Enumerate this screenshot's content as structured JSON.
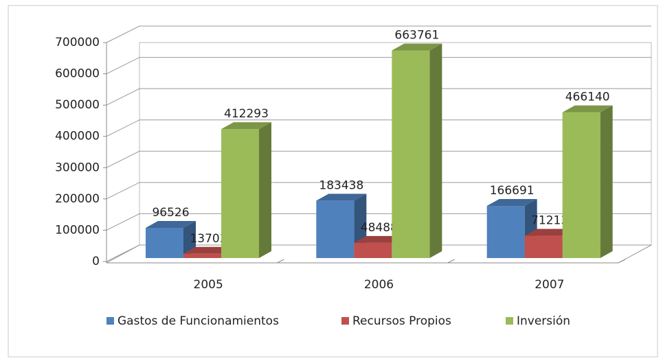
{
  "chart_data": {
    "type": "bar3d",
    "categories": [
      "2005",
      "2006",
      "2007"
    ],
    "series": [
      {
        "name": "Gastos de Funcionamientos",
        "color": "#4f81bd",
        "values": [
          96526,
          183438,
          166691
        ]
      },
      {
        "name": "Recursos Propios",
        "color": "#c0504d",
        "values": [
          13703,
          48488,
          71213
        ]
      },
      {
        "name": "Inversión",
        "color": "#9bbb59",
        "values": [
          412293,
          663761,
          466140
        ]
      }
    ],
    "ylim": [
      0,
      700000
    ],
    "yticks": [
      0,
      100000,
      200000,
      300000,
      400000,
      500000,
      600000,
      700000
    ],
    "grid": true,
    "legend": "bottom"
  }
}
